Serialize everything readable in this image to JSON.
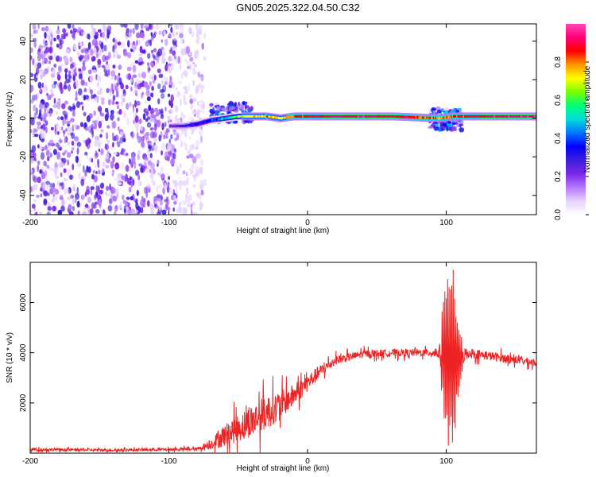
{
  "title": "GN05.2025.322.04.50.C32",
  "chart_data": [
    {
      "type": "heatmap",
      "title": "GN05.2025.322.04.50.C32",
      "xlabel": "Height of straight line (km)",
      "ylabel": "Frequency (Hz)",
      "xlim": [
        -200,
        165
      ],
      "ylim": [
        -50,
        49
      ],
      "x_ticks": [
        {
          "value": -200,
          "label": "-200"
        },
        {
          "value": -100,
          "label": "-100"
        },
        {
          "value": 0,
          "label": "0"
        },
        {
          "value": 100,
          "label": "100"
        }
      ],
      "y_ticks": [
        {
          "value": 40,
          "label": "40"
        },
        {
          "value": 20,
          "label": "20"
        },
        {
          "value": 0,
          "label": "0"
        },
        {
          "value": -20,
          "label": "-20"
        },
        {
          "value": -40,
          "label": "-40"
        }
      ],
      "colorbar": {
        "label": "Normalized spectral amplitude",
        "range": [
          0,
          1
        ],
        "ticks": [
          {
            "value": 0.0,
            "label": "0.0"
          },
          {
            "value": 0.2,
            "label": "0.2"
          },
          {
            "value": 0.4,
            "label": "0.4"
          },
          {
            "value": 0.6,
            "label": "0.6"
          },
          {
            "value": 0.8,
            "label": "0.8"
          }
        ],
        "colors": [
          "#ffffff",
          "#e6d2ff",
          "#b478ff",
          "#7a28e6",
          "#3c1edc",
          "#0000ff",
          "#0078ff",
          "#00dcdc",
          "#00ff78",
          "#78ff00",
          "#ffff00",
          "#ff9600",
          "#ff0000",
          "#ff0078",
          "#ff46b4"
        ]
      },
      "noise_region": {
        "x_range": [
          -200,
          -80
        ],
        "freq_range": [
          -50,
          49
        ]
      },
      "ridge_track": [
        {
          "x": -100,
          "f": -4,
          "amp": 0.2
        },
        {
          "x": -90,
          "f": -4,
          "amp": 0.3
        },
        {
          "x": -80,
          "f": -3,
          "amp": 0.35
        },
        {
          "x": -70,
          "f": -1,
          "amp": 0.4
        },
        {
          "x": -60,
          "f": 0,
          "amp": 0.5
        },
        {
          "x": -50,
          "f": 1,
          "amp": 0.7
        },
        {
          "x": -40,
          "f": 1,
          "amp": 0.8
        },
        {
          "x": -30,
          "f": 1,
          "amp": 0.85
        },
        {
          "x": -20,
          "f": 0,
          "amp": 0.8
        },
        {
          "x": -10,
          "f": 1,
          "amp": 0.9
        },
        {
          "x": 0,
          "f": 1,
          "amp": 0.95
        },
        {
          "x": 20,
          "f": 1,
          "amp": 1.0
        },
        {
          "x": 60,
          "f": 1,
          "amp": 1.0
        },
        {
          "x": 95,
          "f": 0,
          "amp": 0.85
        },
        {
          "x": 105,
          "f": 1,
          "amp": 0.9
        },
        {
          "x": 130,
          "f": 1,
          "amp": 1.0
        },
        {
          "x": 165,
          "f": 1,
          "amp": 1.0
        }
      ],
      "ridge_bands": [
        {
          "x": [
            -70,
            -40
          ],
          "f": [
            -2,
            8
          ],
          "amp": 0.4
        },
        {
          "x": [
            88,
            112
          ],
          "f": [
            -6,
            5
          ],
          "amp": 0.45
        }
      ]
    },
    {
      "type": "line",
      "xlabel": "Height of straight line (km)",
      "ylabel": "SNR (10 * v/v)",
      "xlim": [
        -200,
        165
      ],
      "ylim": [
        0,
        7600
      ],
      "x_ticks": [
        {
          "value": -200,
          "label": "-200"
        },
        {
          "value": -100,
          "label": "-100"
        },
        {
          "value": 0,
          "label": "0"
        },
        {
          "value": 100,
          "label": "100"
        }
      ],
      "y_ticks": [
        {
          "value": 2000,
          "label": "2000"
        },
        {
          "value": 4000,
          "label": "4000"
        },
        {
          "value": 6000,
          "label": "6000"
        }
      ],
      "color": "#ee2222",
      "series": [
        {
          "name": "SNR",
          "envelope": [
            {
              "x": -200,
              "mean": 150,
              "amp": 120
            },
            {
              "x": -140,
              "mean": 120,
              "amp": 100
            },
            {
              "x": -80,
              "mean": 160,
              "amp": 120
            },
            {
              "x": -70,
              "mean": 350,
              "amp": 400
            },
            {
              "x": -60,
              "mean": 700,
              "amp": 900
            },
            {
              "x": -50,
              "mean": 1000,
              "amp": 1100
            },
            {
              "x": -40,
              "mean": 1300,
              "amp": 1300
            },
            {
              "x": -30,
              "mean": 1600,
              "amp": 1400
            },
            {
              "x": -20,
              "mean": 1900,
              "amp": 1100
            },
            {
              "x": -10,
              "mean": 2300,
              "amp": 900
            },
            {
              "x": 0,
              "mean": 2800,
              "amp": 700
            },
            {
              "x": 10,
              "mean": 3300,
              "amp": 500
            },
            {
              "x": 20,
              "mean": 3700,
              "amp": 350
            },
            {
              "x": 40,
              "mean": 3950,
              "amp": 300
            },
            {
              "x": 60,
              "mean": 4000,
              "amp": 300
            },
            {
              "x": 90,
              "mean": 4000,
              "amp": 300
            },
            {
              "x": 95,
              "mean": 4000,
              "amp": 600
            },
            {
              "x": 100,
              "mean": 3800,
              "amp": 3500
            },
            {
              "x": 105,
              "mean": 3800,
              "amp": 3700
            },
            {
              "x": 110,
              "mean": 3800,
              "amp": 1000
            },
            {
              "x": 115,
              "mean": 4000,
              "amp": 400
            },
            {
              "x": 140,
              "mean": 3800,
              "amp": 350
            },
            {
              "x": 165,
              "mean": 3600,
              "amp": 300
            }
          ]
        }
      ]
    }
  ]
}
